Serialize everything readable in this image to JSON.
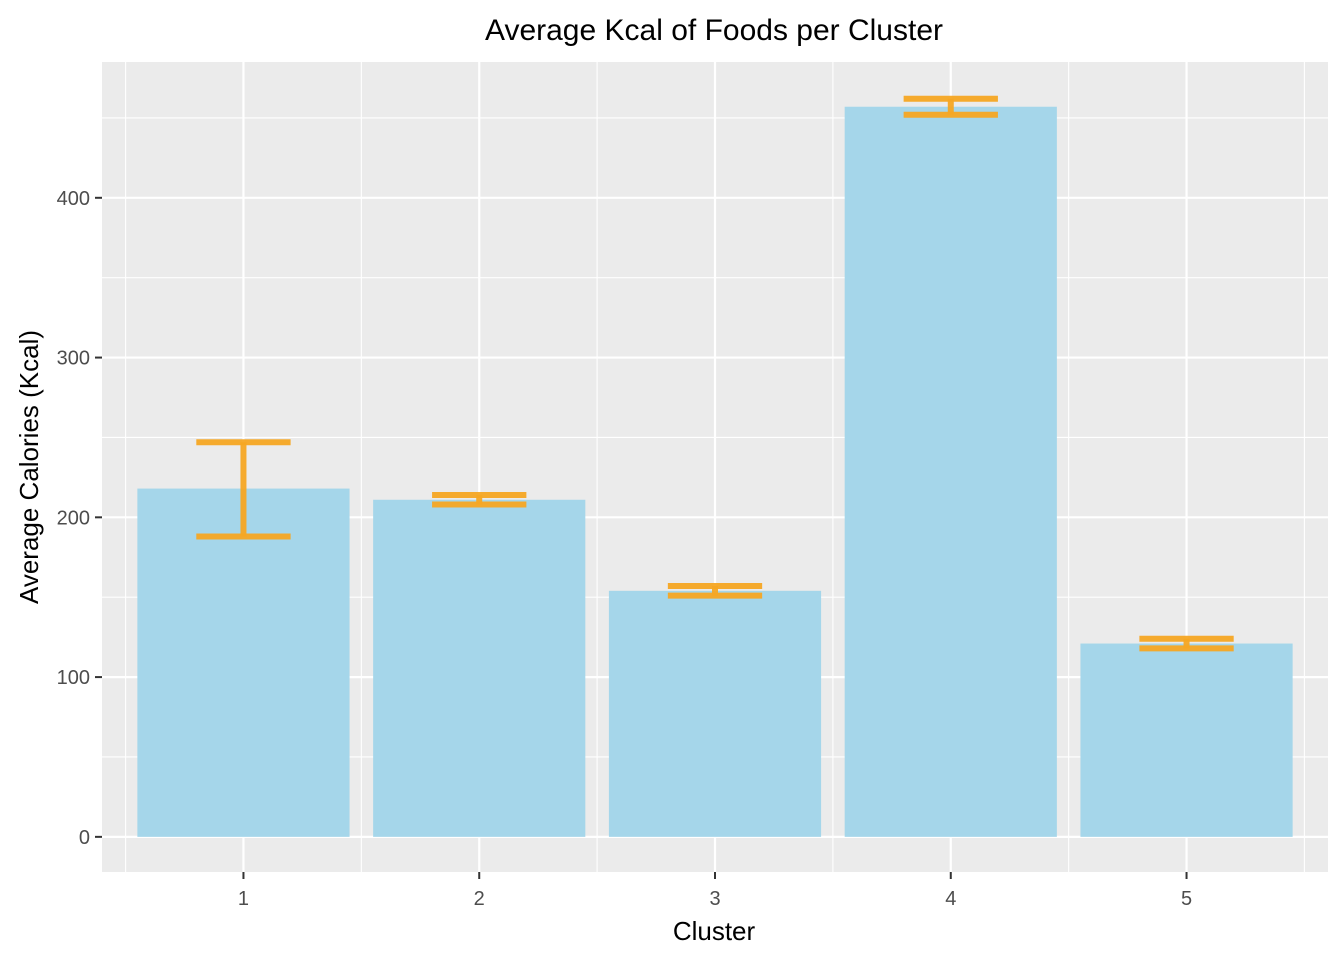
{
  "chart_data": {
    "type": "bar",
    "title": "Average Kcal of Foods per Cluster",
    "xlabel": "Cluster",
    "ylabel": "Average Calories (Kcal)",
    "categories": [
      "1",
      "2",
      "3",
      "4",
      "5"
    ],
    "values": [
      218,
      211,
      154,
      457,
      121
    ],
    "error_low": [
      188,
      208,
      151,
      452,
      118
    ],
    "error_high": [
      247,
      214,
      157,
      462,
      124
    ],
    "ylim": [
      -22,
      485
    ],
    "yticks": [
      0,
      100,
      200,
      300,
      400
    ],
    "yticks_labels": [
      "0",
      "100",
      "200",
      "300",
      "400"
    ],
    "grid": true,
    "legend": "none",
    "colors": {
      "bar": "#a5d6ea",
      "error_bar": "#f5a623",
      "panel": "#ebebeb",
      "grid": "#ffffff",
      "tick": "#333333"
    }
  }
}
